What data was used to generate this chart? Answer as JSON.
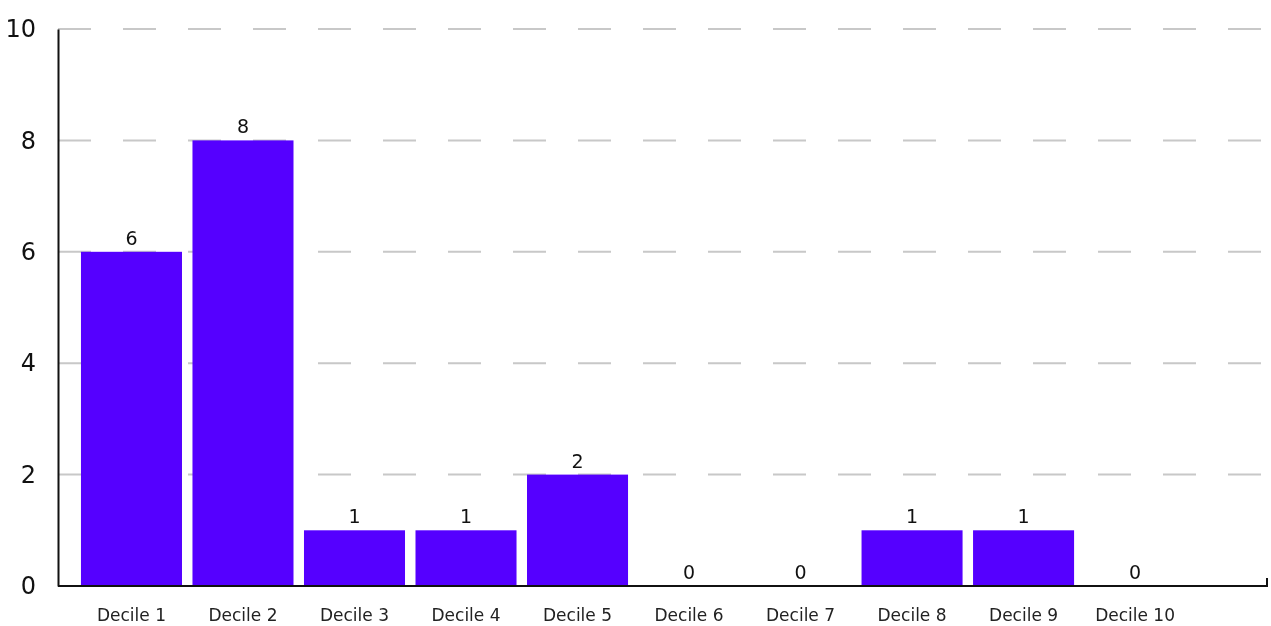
{
  "chart_data": {
    "type": "bar",
    "categories": [
      "Decile 1",
      "Decile 2",
      "Decile 3",
      "Decile 4",
      "Decile 5",
      "Decile 6",
      "Decile 7",
      "Decile 8",
      "Decile 9",
      "Decile 10"
    ],
    "values": [
      6,
      8,
      1,
      1,
      2,
      0,
      0,
      1,
      1,
      0
    ],
    "color": "#5500ff",
    "ylim": [
      0,
      10
    ],
    "yticks": [
      0,
      2,
      4,
      6,
      8,
      10
    ],
    "grid": "y",
    "data_labels": true
  }
}
